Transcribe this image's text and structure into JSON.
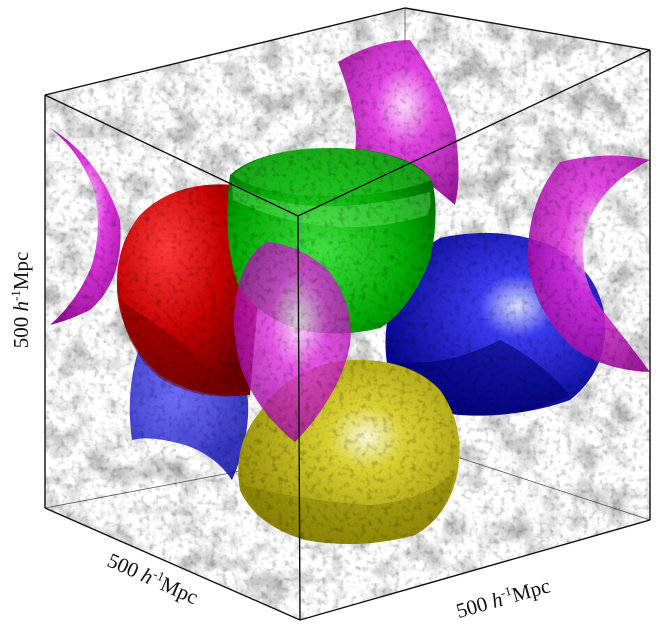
{
  "labels": {
    "left": {
      "size": "500",
      "unit_h": "h",
      "unit_exp": "-1",
      "unit": "Mpc"
    },
    "bottom_left": {
      "size": "500",
      "unit_h": "h",
      "unit_exp": "-1",
      "unit": "Mpc"
    },
    "bottom_right": {
      "size": "500",
      "unit_h": "h",
      "unit_exp": "-1",
      "unit": "Mpc"
    }
  },
  "colors": {
    "red": "#c00000",
    "green": "#00a000",
    "blue": "#0000cc",
    "yellow": "#c8c000",
    "magenta": "#d010d0",
    "cube_edge": "#111111",
    "noise": "#8a8a8a"
  }
}
